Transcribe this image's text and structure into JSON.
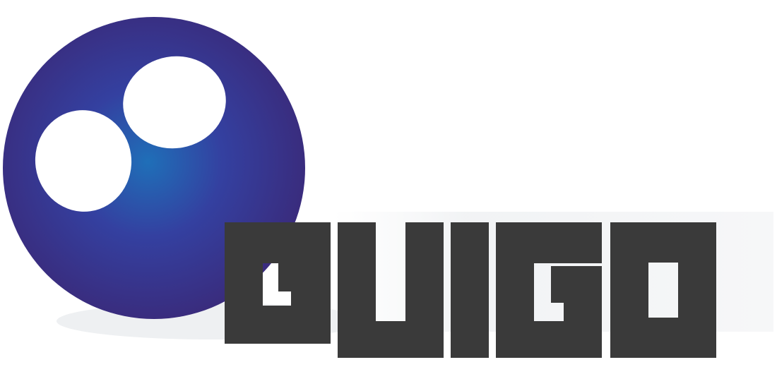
{
  "logo": {
    "wordmark": "GUIGO",
    "colors": {
      "ball_dark": "#3a2a7a",
      "ball_highlight": "#1f6fb8",
      "ball_edge": "#2f2468",
      "eyes": "#ffffff",
      "wordmark": "#3a3a3a",
      "shadow": "#eef0f2",
      "background": "#ffffff"
    }
  }
}
